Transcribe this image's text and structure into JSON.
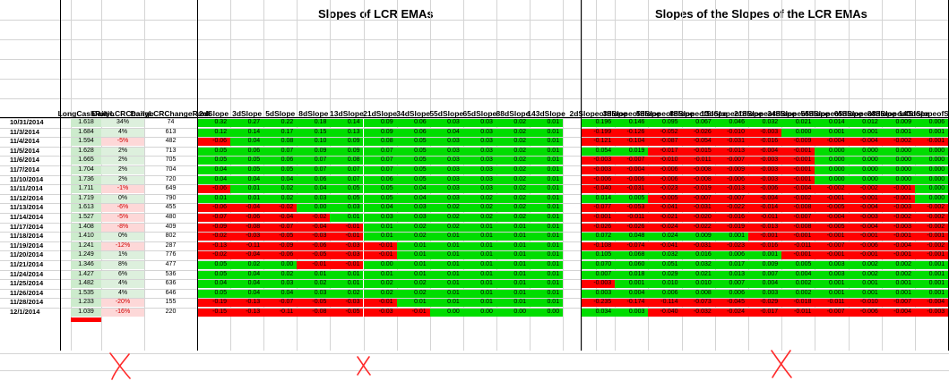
{
  "titles": {
    "lcr_emas": "Slopes of LCR EMAs",
    "slopes_of_slopes": "Slopes of the Slopes of the LCR EMAs"
  },
  "colors": {
    "positive": "#00dd00",
    "negative": "#ff0000",
    "light_green": "#ddf0dd",
    "light_red": "#fdd8d8",
    "lcr_bg": "#ccebcc",
    "gridline": "#d4d4d4",
    "annotation": "#ff0000"
  },
  "headers": {
    "lcr": [
      "Long",
      "Cash",
      "Ratio"
    ],
    "change": [
      "Daily",
      "LCR",
      "Change"
    ],
    "rank": [
      "Daily",
      "LCR",
      "Change",
      "Rank"
    ],
    "slopes": [
      "2d|Slope",
      "3d|Slope",
      "5d|Slope",
      "8d|Slope",
      "13d|Slope",
      "21d|Slope",
      "34d|Slope",
      "55d|Slope",
      "65d|Slope",
      "88d|Slope",
      "143d|Slope"
    ],
    "slopes2": [
      "2d|Slope|of|Slope",
      "3d|Slope|of|Slope",
      "5d|Slope|of|Slope",
      "8d|Slope|of|Slope",
      "13d|Slope|of|Slope",
      "21d|Slope|of|Slope",
      "34d|Slope|of|Slope",
      "55d|Slope|of|Slope",
      "65d|Slope|of|Slope",
      "88d|Slope|of|Slope",
      "143d|Slope|of|Slope"
    ]
  },
  "rows": [
    {
      "date": "10/31/2014",
      "lcr": "1.618",
      "chg": "34%",
      "rank": "74",
      "s": [
        "0.32",
        "0.27",
        "0.22",
        "0.18",
        "0.14",
        "0.09",
        "0.06",
        "0.03",
        "0.03",
        "0.02",
        "0.01"
      ],
      "ss": [
        "0.196",
        "0.146",
        "0.095",
        "0.067",
        "0.046",
        "0.032",
        "0.021",
        "0.014",
        "0.012",
        "0.009",
        "0.006"
      ]
    },
    {
      "date": "11/3/2014",
      "lcr": "1.684",
      "chg": "4%",
      "rank": "613",
      "s": [
        "0.12",
        "0.14",
        "0.17",
        "0.15",
        "0.13",
        "0.09",
        "0.06",
        "0.04",
        "0.03",
        "0.02",
        "0.01"
      ],
      "ss": [
        "-0.199",
        "-0.126",
        "-0.052",
        "-0.026",
        "-0.010",
        "-0.003",
        "0.000",
        "0.001",
        "0.001",
        "0.001",
        "0.001"
      ]
    },
    {
      "date": "11/4/2014",
      "lcr": "1.594",
      "chg": "-5%",
      "rank": "482",
      "s": [
        "-0.06",
        "0.04",
        "0.08",
        "0.10",
        "0.09",
        "0.08",
        "0.05",
        "0.03",
        "0.03",
        "0.02",
        "0.01"
      ],
      "ss": [
        "-0.121",
        "-0.104",
        "-0.087",
        "-0.054",
        "-0.031",
        "-0.016",
        "-0.009",
        "-0.004",
        "-0.004",
        "-0.002",
        "-0.001"
      ]
    },
    {
      "date": "11/5/2014",
      "lcr": "1.628",
      "chg": "2%",
      "rank": "713",
      "s": [
        "0.05",
        "0.06",
        "0.07",
        "0.09",
        "0.09",
        "0.07",
        "0.05",
        "0.03",
        "0.03",
        "0.02",
        "0.01"
      ],
      "ss": [
        "0.054",
        "0.019",
        "-0.017",
        "-0.015",
        "-0.013",
        "-0.004",
        "-0.001",
        "0.000",
        "0.000",
        "0.000",
        "0.000"
      ]
    },
    {
      "date": "11/6/2014",
      "lcr": "1.665",
      "chg": "2%",
      "rank": "705",
      "s": [
        "0.05",
        "0.05",
        "0.06",
        "0.07",
        "0.08",
        "0.07",
        "0.05",
        "0.03",
        "0.03",
        "0.02",
        "0.01"
      ],
      "ss": [
        "-0.003",
        "-0.007",
        "-0.010",
        "-0.011",
        "-0.007",
        "-0.003",
        "-0.001",
        "0.000",
        "0.000",
        "0.000",
        "0.000"
      ]
    },
    {
      "date": "11/7/2014",
      "lcr": "1.704",
      "chg": "2%",
      "rank": "704",
      "s": [
        "0.04",
        "0.05",
        "0.05",
        "0.07",
        "0.07",
        "0.07",
        "0.05",
        "0.03",
        "0.03",
        "0.02",
        "0.01"
      ],
      "ss": [
        "-0.003",
        "-0.004",
        "-0.006",
        "-0.008",
        "-0.009",
        "-0.003",
        "-0.001",
        "0.000",
        "0.000",
        "0.000",
        "0.000"
      ]
    },
    {
      "date": "11/10/2014",
      "lcr": "1.736",
      "chg": "2%",
      "rank": "720",
      "s": [
        "0.04",
        "0.04",
        "0.04",
        "0.06",
        "0.07",
        "0.06",
        "0.05",
        "0.03",
        "0.03",
        "0.02",
        "0.01"
      ],
      "ss": [
        "-0.006",
        "-0.006",
        "-0.006",
        "-0.008",
        "-0.006",
        "-0.003",
        "-0.001",
        "0.000",
        "0.000",
        "0.000",
        "0.000"
      ]
    },
    {
      "date": "11/11/2014",
      "lcr": "1.711",
      "chg": "-1%",
      "rank": "649",
      "s": [
        "-0.06",
        "0.01",
        "0.02",
        "0.04",
        "0.05",
        "0.05",
        "0.04",
        "0.03",
        "0.03",
        "0.02",
        "0.01"
      ],
      "ss": [
        "-0.040",
        "-0.031",
        "-0.023",
        "-0.019",
        "-0.013",
        "-0.006",
        "-0.004",
        "-0.002",
        "-0.002",
        "-0.001",
        "0.000"
      ]
    },
    {
      "date": "11/12/2014",
      "lcr": "1.719",
      "chg": "0%",
      "rank": "790",
      "s": [
        "0.01",
        "0.01",
        "0.02",
        "0.03",
        "0.05",
        "0.05",
        "0.04",
        "0.03",
        "0.02",
        "0.02",
        "0.01"
      ],
      "ss": [
        "0.014",
        "0.005",
        "-0.005",
        "-0.007",
        "-0.007",
        "-0.004",
        "-0.002",
        "-0.001",
        "-0.001",
        "-0.001",
        "0.000"
      ]
    },
    {
      "date": "11/13/2014",
      "lcr": "1.613",
      "chg": "-6%",
      "rank": "455",
      "s": [
        "-0.06",
        "-0.04",
        "-0.02",
        "0.00",
        "0.03",
        "0.04",
        "0.03",
        "0.02",
        "0.02",
        "0.02",
        "0.01"
      ],
      "ss": [
        "-0.077",
        "-0.053",
        "-0.041",
        "-0.031",
        "-0.022",
        "-0.014",
        "-0.008",
        "-0.005",
        "-0.004",
        "-0.003",
        "-0.002"
      ]
    },
    {
      "date": "11/14/2014",
      "lcr": "1.527",
      "chg": "-5%",
      "rank": "480",
      "s": [
        "-0.07",
        "-0.06",
        "-0.04",
        "-0.02",
        "0.01",
        "0.03",
        "0.03",
        "0.02",
        "0.02",
        "0.02",
        "0.01"
      ],
      "ss": [
        "-0.001",
        "-0.011",
        "-0.021",
        "-0.020",
        "-0.016",
        "-0.011",
        "-0.007",
        "-0.004",
        "-0.003",
        "-0.002",
        "-0.002"
      ]
    },
    {
      "date": "11/17/2014",
      "lcr": "1.408",
      "chg": "-8%",
      "rank": "409",
      "s": [
        "-0.09",
        "-0.08",
        "-0.07",
        "-0.04",
        "-0.01",
        "0.01",
        "0.02",
        "0.02",
        "0.01",
        "0.01",
        "0.01"
      ],
      "ss": [
        "-0.026",
        "-0.026",
        "-0.024",
        "-0.022",
        "-0.019",
        "-0.013",
        "-0.008",
        "-0.005",
        "-0.004",
        "-0.003",
        "-0.002"
      ]
    },
    {
      "date": "11/18/2014",
      "lcr": "1.410",
      "chg": "0%",
      "rank": "802",
      "s": [
        "-0.02",
        "-0.03",
        "-0.05",
        "-0.03",
        "-0.01",
        "0.01",
        "0.02",
        "0.01",
        "0.01",
        "0.01",
        "0.01"
      ],
      "ss": [
        "0.072",
        "0.048",
        "0.024",
        "0.009",
        "0.001",
        "-0.001",
        "-0.001",
        "-0.001",
        "-0.001",
        "-0.001",
        "-0.001"
      ]
    },
    {
      "date": "11/19/2014",
      "lcr": "1.241",
      "chg": "-12%",
      "rank": "287",
      "s": [
        "-0.13",
        "-0.11",
        "-0.09",
        "-0.06",
        "-0.03",
        "-0.01",
        "0.01",
        "0.01",
        "0.01",
        "0.01",
        "0.01"
      ],
      "ss": [
        "-0.108",
        "-0.074",
        "-0.041",
        "-0.031",
        "-0.023",
        "-0.016",
        "-0.011",
        "-0.007",
        "-0.006",
        "-0.004",
        "-0.002"
      ]
    },
    {
      "date": "11/20/2014",
      "lcr": "1.249",
      "chg": "1%",
      "rank": "776",
      "s": [
        "-0.02",
        "-0.04",
        "-0.06",
        "-0.05",
        "-0.03",
        "-0.01",
        "0.01",
        "0.01",
        "0.01",
        "0.01",
        "0.01"
      ],
      "ss": [
        "0.105",
        "0.068",
        "0.032",
        "0.016",
        "0.006",
        "0.001",
        "-0.001",
        "-0.001",
        "-0.001",
        "-0.001",
        "-0.001"
      ]
    },
    {
      "date": "11/21/2014",
      "lcr": "1.346",
      "chg": "8%",
      "rank": "477",
      "s": [
        "0.05",
        "0.02",
        "0.00",
        "-0.01",
        "-0.01",
        "0.00",
        "0.01",
        "0.01",
        "0.01",
        "0.01",
        "0.01"
      ],
      "ss": [
        "0.070",
        "0.060",
        "0.051",
        "0.032",
        "0.017",
        "0.009",
        "0.005",
        "0.003",
        "0.002",
        "0.002",
        "0.001"
      ]
    },
    {
      "date": "11/24/2014",
      "lcr": "1.427",
      "chg": "6%",
      "rank": "536",
      "s": [
        "0.05",
        "0.04",
        "0.02",
        "0.01",
        "0.01",
        "0.01",
        "0.01",
        "0.01",
        "0.01",
        "0.01",
        "0.01"
      ],
      "ss": [
        "0.007",
        "0.018",
        "0.029",
        "0.021",
        "0.013",
        "0.007",
        "0.004",
        "0.003",
        "0.002",
        "0.002",
        "0.001"
      ]
    },
    {
      "date": "11/25/2014",
      "lcr": "1.482",
      "chg": "4%",
      "rank": "636",
      "s": [
        "0.04",
        "0.04",
        "0.03",
        "0.02",
        "0.01",
        "0.02",
        "0.02",
        "0.01",
        "0.01",
        "0.01",
        "0.01"
      ],
      "ss": [
        "-0.003",
        "0.001",
        "0.010",
        "0.010",
        "0.007",
        "0.004",
        "0.002",
        "0.001",
        "0.001",
        "0.001",
        "0.001"
      ]
    },
    {
      "date": "11/26/2014",
      "lcr": "1.535",
      "chg": "4%",
      "rank": "646",
      "s": [
        "0.05",
        "0.04",
        "0.04",
        "0.03",
        "0.02",
        "0.02",
        "0.02",
        "0.01",
        "0.01",
        "0.01",
        "0.01"
      ],
      "ss": [
        "0.003",
        "0.004",
        "0.006",
        "0.008",
        "0.006",
        "0.003",
        "0.002",
        "0.001",
        "0.001",
        "0.001",
        "0.001"
      ]
    },
    {
      "date": "11/28/2014",
      "lcr": "1.233",
      "chg": "-20%",
      "rank": "155",
      "s": [
        "-0.19",
        "-0.13",
        "-0.07",
        "-0.05",
        "-0.03",
        "-0.01",
        "0.01",
        "0.01",
        "0.01",
        "0.01",
        "0.01"
      ],
      "ss": [
        "-0.235",
        "-0.174",
        "-0.114",
        "-0.073",
        "-0.045",
        "-0.029",
        "-0.018",
        "-0.011",
        "-0.010",
        "-0.007",
        "-0.004"
      ]
    },
    {
      "date": "12/1/2014",
      "lcr": "1.039",
      "chg": "-16%",
      "rank": "220",
      "s": [
        "-0.15",
        "-0.13",
        "-0.11",
        "-0.08",
        "-0.05",
        "-0.03",
        "-0.01",
        "0.00",
        "0.00",
        "0.00",
        "0.00"
      ],
      "ss": [
        "0.034",
        "0.003",
        "-0.040",
        "-0.032",
        "-0.024",
        "-0.017",
        "-0.011",
        "-0.007",
        "-0.006",
        "-0.004",
        "-0.003"
      ]
    }
  ]
}
